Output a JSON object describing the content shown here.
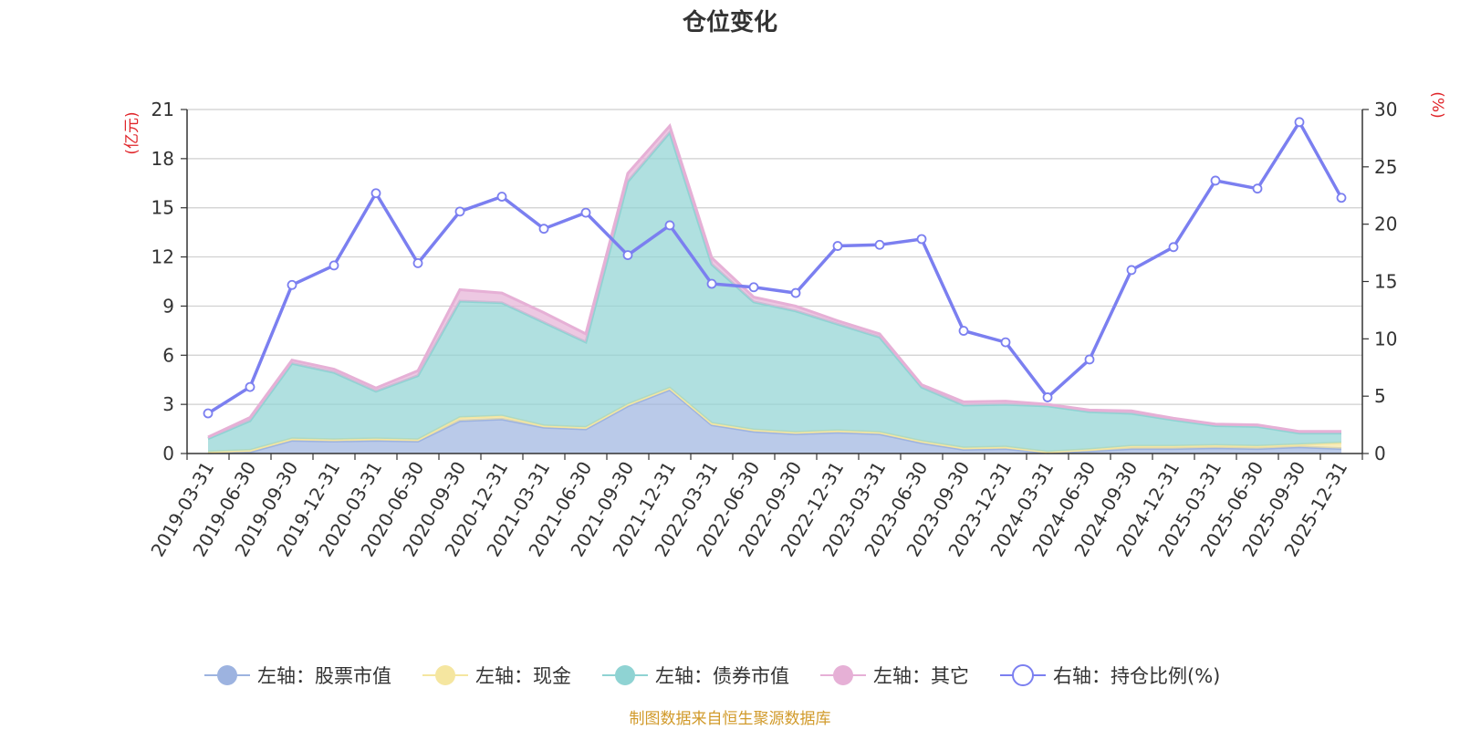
{
  "chart_data": {
    "type": "area",
    "title": "仓位变化",
    "left_axis_unit": "(亿元)",
    "right_axis_unit": "(%)",
    "left_ylim": [
      0,
      21
    ],
    "left_ticks": [
      "0",
      "3",
      "6",
      "9",
      "12",
      "15",
      "18",
      "21"
    ],
    "right_ylim": [
      0,
      30
    ],
    "right_ticks": [
      "0",
      "5",
      "10",
      "15",
      "20",
      "25",
      "30"
    ],
    "categories": [
      "2019-03-31",
      "2019-06-30",
      "2019-09-30",
      "2019-12-31",
      "2020-03-31",
      "2020-06-30",
      "2020-09-30",
      "2020-12-31",
      "2021-03-31",
      "2021-06-30",
      "2021-09-30",
      "2021-12-31",
      "2022-03-31",
      "2022-06-30",
      "2022-09-30",
      "2022-12-31",
      "2023-03-31",
      "2023-06-30",
      "2023-09-30",
      "2023-12-31",
      "2024-03-31",
      "2024-06-30",
      "2024-09-30",
      "2024-12-31",
      "2025-03-31",
      "2025-06-30",
      "2025-09-30",
      "2025-12-31"
    ],
    "series": [
      {
        "name": "左轴：股票市值",
        "axis": "left",
        "stack": true,
        "color": "#9db3e0",
        "values": [
          0.05,
          0.1,
          0.8,
          0.75,
          0.8,
          0.75,
          2.0,
          2.1,
          1.6,
          1.5,
          2.9,
          3.9,
          1.75,
          1.35,
          1.2,
          1.3,
          1.2,
          0.65,
          0.25,
          0.3,
          0.05,
          0.15,
          0.3,
          0.3,
          0.35,
          0.3,
          0.4,
          0.3
        ]
      },
      {
        "name": "左轴：现金",
        "axis": "left",
        "stack": true,
        "color": "#f5e6a0",
        "values": [
          0.05,
          0.1,
          0.1,
          0.1,
          0.1,
          0.1,
          0.2,
          0.2,
          0.1,
          0.1,
          0.1,
          0.1,
          0.1,
          0.1,
          0.1,
          0.1,
          0.1,
          0.1,
          0.1,
          0.1,
          0.05,
          0.1,
          0.15,
          0.15,
          0.15,
          0.15,
          0.15,
          0.35
        ]
      },
      {
        "name": "左轴：债券市值",
        "axis": "left",
        "stack": true,
        "color": "#8fd3d3",
        "values": [
          0.8,
          1.8,
          4.6,
          4.1,
          2.9,
          3.9,
          7.1,
          6.9,
          6.3,
          5.2,
          13.6,
          15.6,
          9.7,
          7.8,
          7.4,
          6.5,
          5.8,
          3.3,
          2.6,
          2.6,
          2.8,
          2.3,
          2.0,
          1.6,
          1.2,
          1.2,
          0.7,
          0.6
        ]
      },
      {
        "name": "左轴：其它",
        "axis": "left",
        "stack": true,
        "color": "#e6b0d6",
        "values": [
          0.1,
          0.2,
          0.2,
          0.2,
          0.2,
          0.3,
          0.7,
          0.6,
          0.6,
          0.5,
          0.5,
          0.4,
          0.4,
          0.3,
          0.3,
          0.2,
          0.2,
          0.15,
          0.2,
          0.2,
          0.1,
          0.1,
          0.15,
          0.1,
          0.1,
          0.1,
          0.1,
          0.1
        ]
      },
      {
        "name": "右轴：持仓比例(%)",
        "axis": "right",
        "stack": false,
        "color": "#7b7ff0",
        "values": [
          3.5,
          5.8,
          14.7,
          16.4,
          22.7,
          16.6,
          21.1,
          22.4,
          19.6,
          21.0,
          17.3,
          19.9,
          14.8,
          14.5,
          14.0,
          18.1,
          18.2,
          18.7,
          10.7,
          9.7,
          4.9,
          8.2,
          16.0,
          18.0,
          23.8,
          23.1,
          28.9,
          22.3
        ]
      }
    ]
  },
  "source_text": "制图数据来自恒生聚源数据库"
}
